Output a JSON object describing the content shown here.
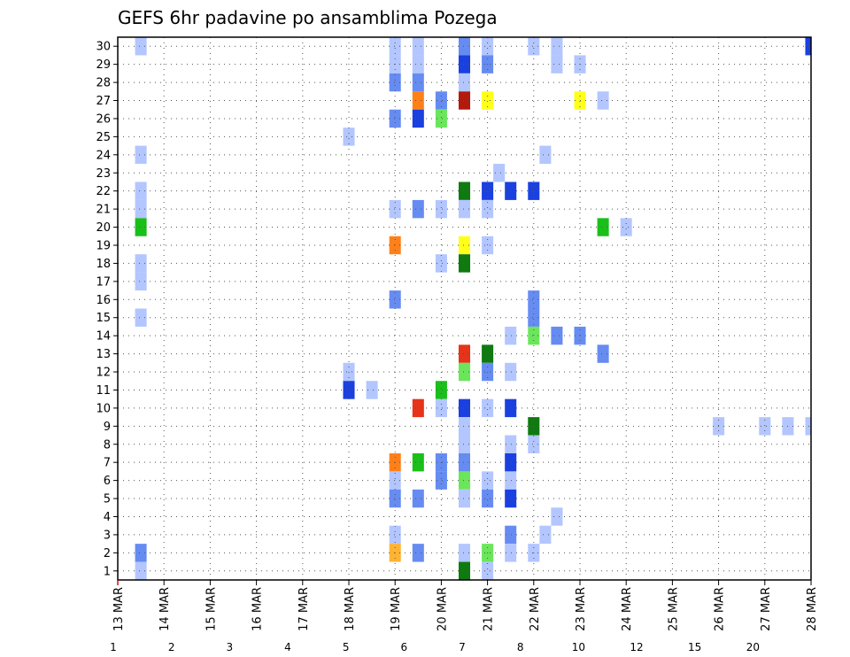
{
  "chart_data": {
    "type": "heatmap",
    "title": "GEFS 6hr padavine po ansamblima Pozega",
    "xlabel": "",
    "ylabel": "",
    "x_tick_labels": [
      "13 MAR",
      "14 MAR",
      "15 MAR",
      "16 MAR",
      "17 MAR",
      "18 MAR",
      "19 MAR",
      "20 MAR",
      "21 MAR",
      "22 MAR",
      "23 MAR",
      "24 MAR",
      "25 MAR",
      "26 MAR",
      "27 MAR",
      "28 MAR"
    ],
    "y_tick_labels": [
      "1",
      "2",
      "3",
      "4",
      "5",
      "6",
      "7",
      "8",
      "9",
      "10",
      "11",
      "12",
      "13",
      "14",
      "15",
      "16",
      "17",
      "18",
      "19",
      "20",
      "21",
      "22",
      "23",
      "24",
      "25",
      "26",
      "27",
      "28",
      "29",
      "30"
    ],
    "ylim": [
      0.5,
      30.5
    ],
    "x_steps_per_day": 4,
    "grid": "dotted",
    "colorbar": {
      "labels": [
        "1",
        "2",
        "3",
        "4",
        "5",
        "6",
        "7",
        "8",
        "10",
        "12",
        "15",
        "20"
      ],
      "colors": [
        "#b3c6ff",
        "#668cf2",
        "#1a40e0",
        "#6be65b",
        "#1abf1a",
        "#0f7a0f",
        "#ffff1a",
        "#ffb333",
        "#ff8019",
        "#e63319",
        "#b3190d",
        "#800d0d"
      ]
    },
    "color_legend_note": "",
    "cells": [
      [
        30,
        0.5,
        1
      ],
      [
        30,
        6,
        1
      ],
      [
        30,
        6.5,
        1
      ],
      [
        30,
        7.5,
        2
      ],
      [
        30,
        8,
        1
      ],
      [
        30,
        9,
        1
      ],
      [
        30,
        9.5,
        1
      ],
      [
        30,
        15,
        3
      ],
      [
        30,
        18,
        3
      ],
      [
        30,
        18.5,
        1
      ],
      [
        30,
        19,
        1
      ],
      [
        30,
        20,
        2
      ],
      [
        30,
        21,
        3
      ],
      [
        30,
        25,
        1
      ],
      [
        30,
        25.5,
        1
      ],
      [
        30,
        26.5,
        1
      ],
      [
        29,
        6,
        1
      ],
      [
        29,
        6.5,
        1
      ],
      [
        29,
        7.5,
        3
      ],
      [
        29,
        8,
        2
      ],
      [
        29,
        9.5,
        1
      ],
      [
        29,
        10,
        1
      ],
      [
        28,
        6,
        2
      ],
      [
        28,
        6.5,
        2
      ],
      [
        28,
        7.5,
        1
      ],
      [
        28,
        18.5,
        3
      ],
      [
        28,
        21,
        1
      ],
      [
        28,
        23,
        3
      ],
      [
        28,
        23.5,
        2
      ],
      [
        28,
        24.5,
        1
      ],
      [
        27,
        6.5,
        9
      ],
      [
        27,
        7,
        2
      ],
      [
        27,
        7.5,
        11
      ],
      [
        27,
        8,
        7
      ],
      [
        27,
        10,
        7
      ],
      [
        27,
        10.5,
        1
      ],
      [
        27,
        24.25,
        1
      ],
      [
        27,
        29.75,
        1
      ],
      [
        26,
        6,
        2
      ],
      [
        26,
        6.5,
        3
      ],
      [
        26,
        7,
        4
      ],
      [
        26,
        29.5,
        3
      ],
      [
        25,
        5,
        1
      ],
      [
        25,
        24.25,
        2
      ],
      [
        25,
        24.5,
        5
      ],
      [
        25,
        25.25,
        1
      ],
      [
        25,
        25.5,
        5
      ],
      [
        25,
        26,
        4
      ],
      [
        25,
        28,
        3
      ],
      [
        24,
        0.5,
        1
      ],
      [
        24,
        9.25,
        1
      ],
      [
        24,
        22,
        3
      ],
      [
        24,
        26,
        2
      ],
      [
        24,
        26.5,
        4
      ],
      [
        24,
        27,
        2
      ],
      [
        24,
        27.5,
        3
      ],
      [
        24,
        28,
        5
      ],
      [
        24,
        28.5,
        2
      ],
      [
        24,
        29,
        7
      ],
      [
        24,
        29.5,
        10
      ],
      [
        24,
        30,
        10
      ],
      [
        23,
        8.25,
        1
      ],
      [
        22,
        0.5,
        1
      ],
      [
        22,
        7.5,
        6
      ],
      [
        22,
        8,
        3
      ],
      [
        22,
        8.5,
        3
      ],
      [
        22,
        9,
        3
      ],
      [
        22,
        21.5,
        3
      ],
      [
        22,
        22,
        4
      ],
      [
        22,
        22.5,
        1
      ],
      [
        22,
        24.5,
        2
      ],
      [
        22,
        25,
        1
      ],
      [
        21,
        0.5,
        1
      ],
      [
        21,
        6,
        1
      ],
      [
        21,
        6.5,
        2
      ],
      [
        21,
        7,
        1
      ],
      [
        21,
        7.5,
        1
      ],
      [
        21,
        8,
        1
      ],
      [
        20,
        0.5,
        5
      ],
      [
        20,
        10.5,
        5
      ],
      [
        20,
        11,
        1
      ],
      [
        20,
        26.75,
        2
      ],
      [
        20,
        27.25,
        4
      ],
      [
        20,
        27.75,
        2
      ],
      [
        20,
        28.5,
        1
      ],
      [
        20,
        29,
        2
      ],
      [
        19,
        6,
        9
      ],
      [
        19,
        7.5,
        7
      ],
      [
        19,
        8,
        1
      ],
      [
        19,
        25,
        1
      ],
      [
        19,
        29.25,
        1
      ],
      [
        19,
        29.75,
        1
      ],
      [
        18,
        0.5,
        1
      ],
      [
        18,
        7,
        1
      ],
      [
        18,
        7.5,
        6
      ],
      [
        17,
        0.5,
        1
      ],
      [
        16,
        6,
        2
      ],
      [
        16,
        9,
        2
      ],
      [
        16,
        25.5,
        2
      ],
      [
        15,
        0.5,
        1
      ],
      [
        15,
        9,
        2
      ],
      [
        15,
        29.5,
        1
      ],
      [
        14,
        8.5,
        1
      ],
      [
        14,
        9,
        4
      ],
      [
        14,
        9.5,
        2
      ],
      [
        14,
        10,
        2
      ],
      [
        14,
        19.5,
        1
      ],
      [
        14,
        20,
        3
      ],
      [
        14,
        20.5,
        1
      ],
      [
        14,
        21,
        3
      ],
      [
        14,
        21.5,
        1
      ],
      [
        14,
        22.5,
        2
      ],
      [
        14,
        23,
        1
      ],
      [
        14,
        23.5,
        3
      ],
      [
        14,
        24,
        4
      ],
      [
        14,
        24.5,
        2
      ],
      [
        14,
        25.5,
        1
      ],
      [
        14,
        26.5,
        2
      ],
      [
        14,
        27,
        1
      ],
      [
        13,
        7.5,
        10
      ],
      [
        13,
        8,
        6
      ],
      [
        13,
        10.5,
        2
      ],
      [
        13,
        20,
        1
      ],
      [
        13,
        22.5,
        3
      ],
      [
        13,
        23,
        1
      ],
      [
        13,
        24,
        9
      ],
      [
        13,
        24.5,
        10
      ],
      [
        13,
        25,
        9
      ],
      [
        13,
        25.5,
        3
      ],
      [
        13,
        26,
        1
      ],
      [
        13,
        26.5,
        1
      ],
      [
        12,
        5,
        1
      ],
      [
        12,
        7.5,
        4
      ],
      [
        12,
        8,
        2
      ],
      [
        12,
        8.5,
        1
      ],
      [
        12,
        17.5,
        1
      ],
      [
        12,
        20.5,
        1
      ],
      [
        12,
        21,
        1
      ],
      [
        12,
        28,
        1
      ],
      [
        12,
        29.5,
        1
      ],
      [
        12,
        30,
        11
      ],
      [
        12,
        30.25,
        3
      ],
      [
        11,
        5,
        3
      ],
      [
        11,
        5.5,
        1
      ],
      [
        11,
        7,
        5
      ],
      [
        11,
        20,
        3
      ],
      [
        11,
        20.5,
        2
      ],
      [
        11,
        21,
        2
      ],
      [
        11,
        21.5,
        3
      ],
      [
        11,
        26,
        2
      ],
      [
        11,
        26.5,
        5
      ],
      [
        11,
        27,
        5
      ],
      [
        11,
        27.5,
        5
      ],
      [
        11,
        28,
        2
      ],
      [
        11,
        28.5,
        1
      ],
      [
        11,
        29,
        1
      ],
      [
        10,
        6.5,
        10
      ],
      [
        10,
        7,
        1
      ],
      [
        10,
        7.5,
        3
      ],
      [
        10,
        8,
        1
      ],
      [
        10,
        8.5,
        3
      ],
      [
        10,
        29.5,
        2
      ],
      [
        9,
        7.5,
        1
      ],
      [
        9,
        9,
        6
      ],
      [
        9,
        13,
        1
      ],
      [
        9,
        14,
        1
      ],
      [
        9,
        14.5,
        1
      ],
      [
        9,
        15,
        1
      ],
      [
        9,
        26,
        1
      ],
      [
        9,
        26.5,
        1
      ],
      [
        9,
        28,
        1
      ],
      [
        9,
        28.5,
        1
      ],
      [
        9,
        29,
        3
      ],
      [
        9,
        29.5,
        1
      ],
      [
        8,
        7.5,
        1
      ],
      [
        8,
        8.5,
        1
      ],
      [
        8,
        9,
        1
      ],
      [
        7,
        6,
        9
      ],
      [
        7,
        6.5,
        5
      ],
      [
        7,
        7,
        2
      ],
      [
        7,
        7.5,
        2
      ],
      [
        7,
        8.5,
        3
      ],
      [
        6,
        6,
        1
      ],
      [
        6,
        7,
        2
      ],
      [
        6,
        7.5,
        4
      ],
      [
        6,
        8,
        1
      ],
      [
        6,
        8.5,
        1
      ],
      [
        6,
        21.5,
        1
      ],
      [
        6,
        22,
        3
      ],
      [
        6,
        22.5,
        1
      ],
      [
        6,
        28.5,
        2
      ],
      [
        6,
        29,
        1
      ],
      [
        6,
        29.5,
        4
      ],
      [
        5,
        6,
        2
      ],
      [
        5,
        6.5,
        2
      ],
      [
        5,
        7.5,
        1
      ],
      [
        5,
        8,
        2
      ],
      [
        5,
        8.5,
        3
      ],
      [
        5,
        23.5,
        1
      ],
      [
        5,
        24.5,
        3
      ],
      [
        5,
        25,
        3
      ],
      [
        5,
        25.5,
        9
      ],
      [
        5,
        26,
        10
      ],
      [
        5,
        26.5,
        5
      ],
      [
        5,
        27,
        2
      ],
      [
        4,
        9.5,
        1
      ],
      [
        4,
        25,
        2
      ],
      [
        4,
        29,
        1
      ],
      [
        3,
        6,
        1
      ],
      [
        3,
        8.5,
        2
      ],
      [
        3,
        9.25,
        1
      ],
      [
        2,
        0.5,
        2
      ],
      [
        2,
        6,
        8
      ],
      [
        2,
        6.5,
        2
      ],
      [
        2,
        7.5,
        1
      ],
      [
        2,
        8,
        4
      ],
      [
        2,
        8.5,
        1
      ],
      [
        2,
        9,
        1
      ],
      [
        2,
        18,
        1
      ],
      [
        2,
        18.5,
        2
      ],
      [
        2,
        21,
        3
      ],
      [
        2,
        21.5,
        2
      ],
      [
        2,
        22,
        1
      ],
      [
        2,
        22.5,
        1
      ],
      [
        1,
        0.5,
        1
      ],
      [
        1,
        7.5,
        6
      ],
      [
        1,
        8,
        1
      ]
    ]
  }
}
